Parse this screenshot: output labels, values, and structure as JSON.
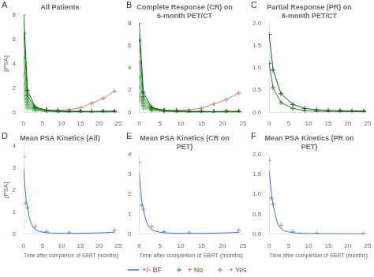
{
  "chart_data": [
    {
      "type": "line",
      "title": "All Patients",
      "annotations": [
        "A"
      ],
      "ylabel": "[PSA]",
      "xlim": [
        0,
        25
      ],
      "xticks": [
        0,
        5,
        10,
        15,
        20,
        25
      ],
      "ylim": [
        0,
        8
      ],
      "yticks": [
        0,
        2,
        4,
        6,
        8
      ],
      "grid": false,
      "legend": "bottom",
      "series": [
        {
          "color": "#1a5c1a",
          "marker": "plus",
          "line_style": "solid",
          "x": [
            0,
            1,
            3,
            6,
            9,
            12,
            15,
            18,
            21,
            24
          ],
          "values": [
            8.0,
            1.8,
            0.45,
            0.18,
            0.12,
            0.09,
            0.09,
            0.07,
            0.09,
            0.09
          ]
        },
        {
          "color": "#2d7a2d",
          "marker": "plus",
          "line_style": "solid",
          "x": [
            0,
            1,
            3,
            6,
            9,
            12,
            15,
            18,
            21,
            24
          ],
          "values": [
            6.5,
            1.4,
            0.38,
            0.18,
            0.09,
            0.07,
            0.07,
            0.06,
            0.07,
            0.07
          ]
        },
        {
          "color": "#3d9e3d",
          "marker": "plus",
          "line_style": "solid",
          "x": [
            0,
            1,
            3,
            6,
            9,
            12,
            15
          ],
          "values": [
            4.5,
            1.1,
            0.32,
            0.16,
            0.07,
            0.06,
            0.05
          ]
        },
        {
          "name": "+ No",
          "color": "#4dab4d",
          "marker": "plus",
          "line_style": "solid",
          "x": [
            0,
            1,
            3,
            6,
            9,
            12,
            15,
            18
          ],
          "values": [
            3.2,
            0.85,
            0.27,
            0.13,
            0.06,
            0.05,
            0.045,
            0.045
          ]
        },
        {
          "color": "#6ab86a",
          "marker": "plus",
          "line_style": "solid",
          "x": [
            0,
            1,
            3,
            6,
            9,
            12,
            15,
            18,
            21,
            24
          ],
          "values": [
            2.3,
            0.65,
            0.22,
            0.1,
            0.055,
            0.045,
            0.035,
            0.035,
            0.035,
            0.035
          ]
        },
        {
          "color": "#85c785",
          "marker": "plus",
          "line_style": "solid",
          "x": [
            0,
            1,
            3,
            6,
            9,
            12,
            15,
            18,
            21,
            24
          ],
          "values": [
            1.7,
            0.48,
            0.18,
            0.09,
            0.045,
            0.035,
            0.025,
            0.025,
            0.025,
            0.025
          ]
        },
        {
          "color": "#99d099",
          "marker": "plus",
          "line_style": "solid",
          "x": [
            0,
            1,
            3,
            6,
            9,
            12
          ],
          "values": [
            1.4,
            0.38,
            0.16,
            0.07,
            0.035,
            0.025
          ]
        },
        {
          "color": "#aadaaa",
          "marker": "plus",
          "line_style": "solid",
          "x": [
            0,
            1,
            3,
            6,
            9,
            12,
            15,
            18,
            21,
            24
          ],
          "values": [
            1.1,
            0.32,
            0.13,
            0.065,
            0.035,
            0.025,
            0.018,
            0.018,
            0.018,
            0.018
          ]
        },
        {
          "color": "#c2e8c2",
          "marker": "plus",
          "line_style": "solid",
          "x": [
            0,
            1,
            3,
            6,
            9,
            12,
            15,
            18
          ],
          "values": [
            0.75,
            0.23,
            0.1,
            0.055,
            0.025,
            0.018,
            0.018,
            0.018
          ]
        },
        {
          "name": "+ Yes",
          "color": "#c8857a",
          "marker": "plus",
          "line_style": "solid",
          "x": [
            0,
            1,
            3,
            6,
            9,
            12,
            15,
            18,
            21,
            24
          ],
          "values": [
            1.4,
            0.55,
            0.28,
            0.18,
            0.18,
            0.23,
            0.38,
            0.75,
            1.15,
            1.75
          ]
        }
      ]
    },
    {
      "type": "line",
      "title": "Complete Response (CR) on 6-month PET/CT",
      "annotations": [
        "B"
      ],
      "xlim": [
        0,
        25
      ],
      "xticks": [
        0,
        5,
        10,
        15,
        20,
        25
      ],
      "ylim": [
        0,
        8
      ],
      "yticks": [
        0,
        2,
        4,
        6,
        8
      ],
      "grid": false,
      "legend": "bottom",
      "series": [
        {
          "color": "#1a5c1a",
          "marker": "plus",
          "line_style": "solid",
          "x": [
            0,
            1,
            3,
            6,
            9,
            12,
            15,
            18,
            21,
            24
          ],
          "values": [
            8.0,
            1.8,
            0.45,
            0.18,
            0.12,
            0.09,
            0.09,
            0.07,
            0.09,
            0.09
          ]
        },
        {
          "color": "#2d7a2d",
          "marker": "plus",
          "line_style": "solid",
          "x": [
            0,
            1,
            3,
            6,
            9,
            12,
            15,
            18,
            21,
            24
          ],
          "values": [
            6.5,
            1.4,
            0.38,
            0.18,
            0.09,
            0.07,
            0.07,
            0.06,
            0.07,
            0.07
          ]
        },
        {
          "color": "#3d9e3d",
          "marker": "plus",
          "line_style": "solid",
          "x": [
            0,
            1,
            3,
            6,
            9,
            12,
            15
          ],
          "values": [
            4.5,
            1.1,
            0.32,
            0.16,
            0.07,
            0.06,
            0.05
          ]
        },
        {
          "color": "#4dab4d",
          "marker": "plus",
          "line_style": "solid",
          "x": [
            0,
            1,
            3,
            6,
            9,
            12,
            15,
            18
          ],
          "values": [
            3.2,
            0.85,
            0.27,
            0.13,
            0.06,
            0.05,
            0.045,
            0.045
          ]
        },
        {
          "color": "#6ab86a",
          "marker": "plus",
          "line_style": "solid",
          "x": [
            0,
            1,
            3,
            6,
            9,
            12,
            15,
            18,
            21,
            24
          ],
          "values": [
            2.3,
            0.65,
            0.22,
            0.1,
            0.055,
            0.045,
            0.035,
            0.035,
            0.035,
            0.035
          ]
        },
        {
          "color": "#85c785",
          "marker": "plus",
          "line_style": "solid",
          "x": [
            0,
            1,
            3,
            6,
            9,
            12,
            15,
            18,
            21,
            24
          ],
          "values": [
            1.7,
            0.48,
            0.18,
            0.09,
            0.045,
            0.035,
            0.025,
            0.025,
            0.025,
            0.025
          ]
        },
        {
          "color": "#99d099",
          "marker": "plus",
          "line_style": "solid",
          "x": [
            0,
            1,
            3,
            6,
            9,
            12,
            15,
            18,
            21,
            24
          ],
          "values": [
            1.1,
            0.32,
            0.13,
            0.065,
            0.035,
            0.025,
            0.018,
            0.018,
            0.018,
            0.018
          ]
        },
        {
          "color": "#c8857a",
          "marker": "plus",
          "line_style": "solid",
          "x": [
            0,
            1,
            3,
            6,
            9,
            12,
            15,
            18,
            21,
            24
          ],
          "values": [
            1.4,
            0.55,
            0.28,
            0.18,
            0.18,
            0.23,
            0.38,
            0.75,
            1.15,
            1.75
          ]
        }
      ]
    },
    {
      "type": "line",
      "title": "Partial Response (PR) on 6-month PET/CT",
      "annotations": [
        "C"
      ],
      "xlim": [
        0,
        25
      ],
      "xticks": [
        0,
        5,
        10,
        15,
        20,
        25
      ],
      "ylim": [
        0,
        2
      ],
      "yticks": [
        {
          "value": 0,
          "label": "0.0"
        },
        0.5,
        {
          "value": 1.0,
          "label": "1.0"
        },
        1.5,
        {
          "value": 2.0,
          "label": "2.0"
        }
      ],
      "grid": false,
      "legend": "bottom",
      "series": [
        {
          "color": "#1a5c1a",
          "marker": "plus",
          "line_style": "solid",
          "x": [
            0,
            1,
            3,
            6,
            9,
            12,
            15,
            18,
            21,
            24
          ],
          "values": [
            1.75,
            0.95,
            0.42,
            0.18,
            0.09,
            0.06,
            0.045,
            0.04,
            0.035,
            0.03
          ]
        },
        {
          "color": "#2d7a2d",
          "marker": "plus",
          "line_style": "solid",
          "x": [
            0,
            1,
            3,
            6,
            9,
            12,
            15,
            18,
            21,
            24
          ],
          "values": [
            1.1,
            0.55,
            0.22,
            0.09,
            0.04,
            0.025,
            0.02,
            0.018,
            0.016,
            0.015
          ]
        }
      ]
    },
    {
      "type": "line",
      "title": "Mean PSA Kinetics (All)",
      "annotations": [
        "D"
      ],
      "ylabel": "[PSA]",
      "xlabel": "Time after completion of SBRT (months)",
      "xlim": [
        0,
        25
      ],
      "xticks": [
        0,
        5,
        10,
        15,
        20,
        25
      ],
      "ylim": [
        0,
        4
      ],
      "yticks": [
        0,
        1,
        2,
        3,
        4
      ],
      "grid": false,
      "legend": "bottom",
      "series": [
        {
          "name": "+/- BF",
          "color": "#4472c4",
          "marker": "none",
          "line_style": "solid",
          "x": [
            0,
            0.3,
            0.6,
            1.0,
            1.5,
            2.0,
            2.5,
            3.0,
            4.0,
            5.0,
            6.0,
            7.0,
            8.0,
            9.0,
            10.0,
            11.0,
            12.0,
            14.0,
            16.0,
            18.0,
            20.0,
            22.0,
            24.0
          ],
          "values": [
            3.0,
            2.2,
            1.6,
            1.2,
            0.75,
            0.48,
            0.32,
            0.22,
            0.13,
            0.09,
            0.07,
            0.058,
            0.05,
            0.045,
            0.042,
            0.04,
            0.04,
            0.042,
            0.045,
            0.05,
            0.06,
            0.07,
            0.1
          ]
        },
        {
          "type": "scatter",
          "color": "#999999",
          "marker": "plus",
          "line_style": "none",
          "x": [
            0,
            0.5,
            1,
            3,
            6,
            12,
            24
          ],
          "values": [
            3.5,
            1.4,
            1.2,
            0.35,
            0.12,
            0.07,
            0.18
          ]
        }
      ]
    },
    {
      "type": "line",
      "title": "Mean PSA Kinetics (CR on PET)",
      "annotations": [
        "E"
      ],
      "xlabel": "Time after completion of SBRT (months)",
      "xlim": [
        0,
        25
      ],
      "xticks": [
        0,
        5,
        10,
        15,
        20,
        25
      ],
      "ylim": [
        0,
        4
      ],
      "yticks": [
        0,
        1,
        2,
        3,
        4
      ],
      "grid": false,
      "legend": "bottom",
      "series": [
        {
          "color": "#4472c4",
          "marker": "none",
          "line_style": "solid",
          "x": [
            0,
            0.3,
            0.6,
            1.0,
            1.5,
            2.0,
            2.5,
            3.0,
            4.0,
            5.0,
            6.0,
            7.0,
            8.0,
            9.0,
            10.0,
            11.0,
            12.0,
            14.0,
            16.0,
            18.0,
            20.0,
            22.0,
            24.0
          ],
          "values": [
            3.1,
            2.3,
            1.65,
            1.25,
            0.78,
            0.5,
            0.33,
            0.23,
            0.14,
            0.1,
            0.075,
            0.062,
            0.053,
            0.047,
            0.044,
            0.042,
            0.041,
            0.043,
            0.047,
            0.053,
            0.063,
            0.073,
            0.105
          ]
        },
        {
          "type": "scatter",
          "color": "#999999",
          "marker": "plus",
          "line_style": "none",
          "x": [
            0,
            0.5,
            1,
            3,
            6,
            12,
            24
          ],
          "values": [
            3.6,
            1.45,
            1.25,
            0.38,
            0.13,
            0.075,
            0.19
          ]
        }
      ]
    },
    {
      "type": "line",
      "title": "Mean PSA Kinetics (PR on PET)",
      "annotations": [
        "F"
      ],
      "xlabel": "Time after completion of SBRT (months)",
      "xlim": [
        0,
        25
      ],
      "xticks": [
        0,
        5,
        10,
        15,
        20,
        25
      ],
      "ylim": [
        0,
        2
      ],
      "yticks": [
        {
          "value": 0,
          "label": "0.0"
        },
        0.5,
        {
          "value": 1.0,
          "label": "1.0"
        },
        1.5,
        {
          "value": 2.0,
          "label": "2.0"
        }
      ],
      "grid": false,
      "legend": "bottom",
      "series": [
        {
          "color": "#4472c4",
          "marker": "none",
          "line_style": "solid",
          "x": [
            0,
            0.3,
            0.6,
            1.0,
            1.5,
            2.0,
            2.5,
            3.0,
            4.0,
            5.0,
            6.0,
            7.0,
            8.0,
            9.0,
            10.0,
            12.0,
            15.0,
            18.0,
            21.0,
            24.0
          ],
          "values": [
            1.6,
            1.3,
            1.0,
            0.75,
            0.5,
            0.32,
            0.2,
            0.14,
            0.08,
            0.055,
            0.04,
            0.03,
            0.025,
            0.02,
            0.018,
            0.016,
            0.014,
            0.013,
            0.012,
            0.012
          ]
        },
        {
          "type": "scatter",
          "color": "#999999",
          "marker": "plus",
          "line_style": "none",
          "x": [
            0,
            0.5,
            1,
            3,
            6,
            12,
            24
          ],
          "values": [
            1.85,
            0.9,
            0.75,
            0.22,
            0.07,
            0.025,
            0.018
          ]
        }
      ]
    }
  ]
}
